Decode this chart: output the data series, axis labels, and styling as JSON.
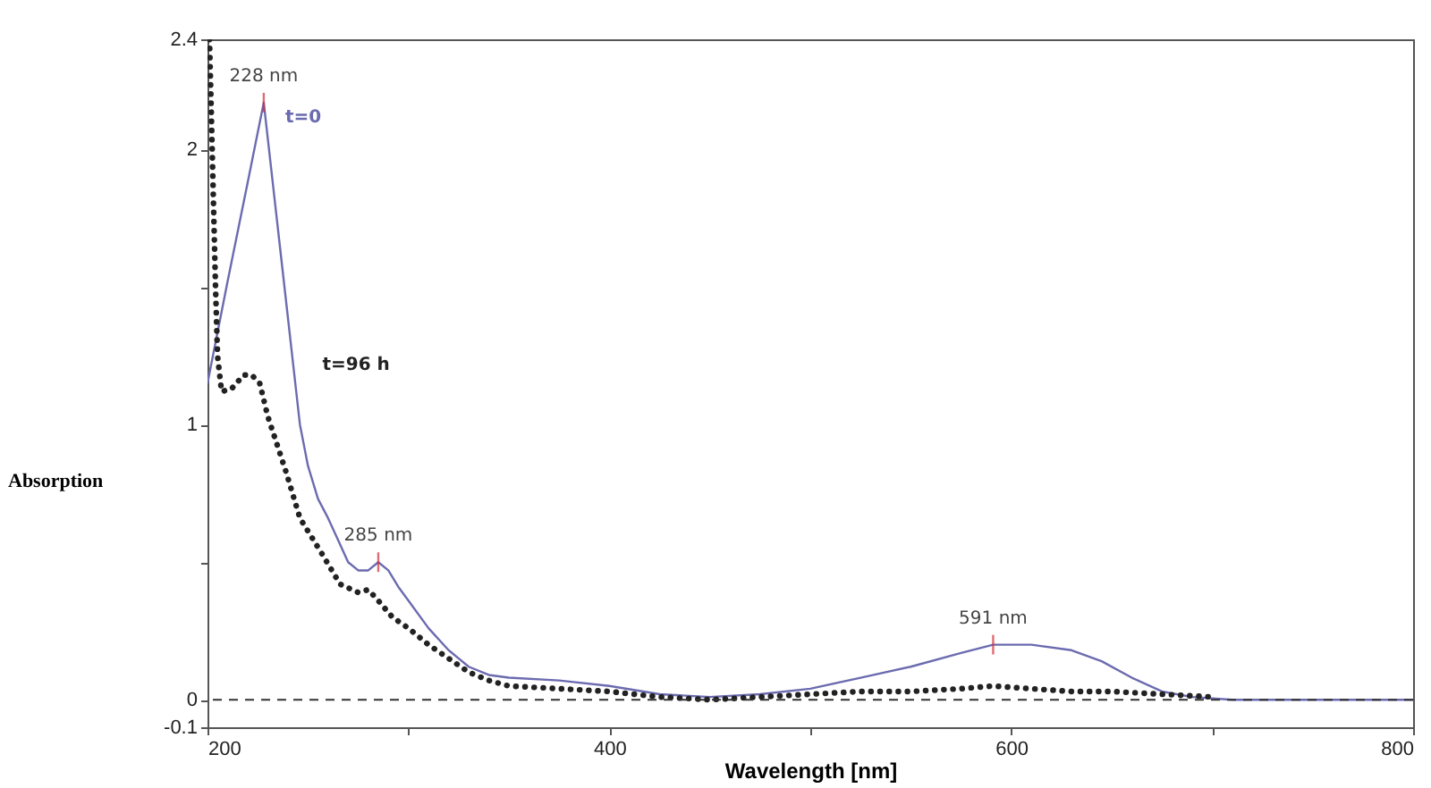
{
  "chart_data": {
    "type": "line",
    "xlabel": "Wavelength [nm]",
    "ylabel": "Absorption",
    "xlim": [
      200,
      800
    ],
    "ylim": [
      -0.1,
      2.4
    ],
    "xticks": [
      200,
      {
        "value": 300,
        "label": null
      },
      400,
      {
        "value": 500,
        "label": null
      },
      600,
      {
        "value": 700,
        "label": null
      },
      800
    ],
    "yticks": [
      -0.1,
      0,
      {
        "value": 0.5,
        "label": null
      },
      1,
      {
        "value": 1.5,
        "label": null
      },
      2,
      2.4
    ],
    "grid": false,
    "ref_lines": [
      {
        "axis": "y",
        "value": 0,
        "line_style": "dashed",
        "color": "#333333"
      }
    ],
    "annotations": [
      {
        "text": "228 nm",
        "x": 228,
        "y": 2.17
      },
      {
        "text": "285 nm",
        "x": 285,
        "y": 0.5
      },
      {
        "text": "591 nm",
        "x": 591,
        "y": 0.2
      }
    ],
    "series": [
      {
        "name": "t=0",
        "color": "#6b6bb0",
        "line_style": "solid",
        "x": [
          200,
          210,
          220,
          228,
          236,
          246,
          250,
          255,
          260,
          265,
          270,
          275,
          280,
          285,
          290,
          295,
          300,
          310,
          320,
          330,
          340,
          350,
          375,
          400,
          425,
          450,
          475,
          500,
          525,
          550,
          575,
          591,
          610,
          630,
          645,
          660,
          675,
          690,
          710,
          750,
          800
        ],
        "values": [
          1.15,
          1.52,
          1.88,
          2.17,
          1.65,
          1.0,
          0.85,
          0.73,
          0.66,
          0.58,
          0.5,
          0.47,
          0.47,
          0.5,
          0.47,
          0.41,
          0.36,
          0.26,
          0.18,
          0.12,
          0.09,
          0.08,
          0.07,
          0.05,
          0.02,
          0.01,
          0.02,
          0.04,
          0.08,
          0.12,
          0.17,
          0.2,
          0.2,
          0.18,
          0.14,
          0.08,
          0.03,
          0.01,
          0,
          0,
          0
        ]
      },
      {
        "name": "t=96 h",
        "color": "#222222",
        "line_style": "dotted",
        "x": [
          201,
          203,
          204,
          205,
          207,
          212,
          218,
          222,
          226,
          230,
          239,
          246,
          257,
          266,
          275,
          280,
          285,
          292,
          300,
          310,
          320,
          330,
          340,
          350,
          375,
          400,
          425,
          450,
          475,
          500,
          525,
          550,
          575,
          591,
          610,
          630,
          650,
          675,
          700
        ],
        "values": [
          2.4,
          1.8,
          1.5,
          1.25,
          1.12,
          1.13,
          1.18,
          1.18,
          1.15,
          1.03,
          0.83,
          0.66,
          0.53,
          0.42,
          0.39,
          0.4,
          0.36,
          0.3,
          0.26,
          0.2,
          0.15,
          0.1,
          0.07,
          0.05,
          0.04,
          0.03,
          0.01,
          0,
          0.01,
          0.02,
          0.03,
          0.03,
          0.04,
          0.05,
          0.04,
          0.03,
          0.03,
          0.02,
          0.01
        ]
      }
    ]
  }
}
